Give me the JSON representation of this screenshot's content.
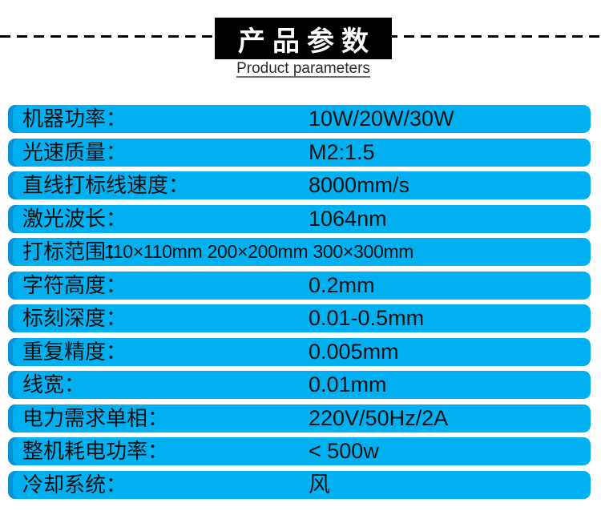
{
  "header": {
    "title": "产品参数",
    "subtitle": "Product parameters",
    "title_bg": "#000000",
    "title_color": "#ffffff"
  },
  "table": {
    "row_color": "#00b0f0",
    "accent_color": "#0c90d4",
    "text_color": "#111111",
    "rows": [
      {
        "label": "机器功率：",
        "value": "10W/20W/30W"
      },
      {
        "label": "光速质量：",
        "value": "M2:1.5"
      },
      {
        "label": "直线打标线速度：",
        "value": "8000mm/s"
      },
      {
        "label": "激光波长：",
        "value": "1064nm"
      },
      {
        "label": "打标范围：",
        "value": "110×110mm 200×200mm 300×300mm"
      },
      {
        "label": "字符高度：",
        "value": "0.2mm"
      },
      {
        "label": "标刻深度：",
        "value": "0.01-0.5mm"
      },
      {
        "label": "重复精度：",
        "value": "0.005mm"
      },
      {
        "label": "线宽：",
        "value": "0.01mm"
      },
      {
        "label": "电力需求单相：",
        "value": "220V/50Hz/2A"
      },
      {
        "label": "整机耗电功率：",
        "value": "< 500w"
      },
      {
        "label": "冷却系统：",
        "value": "风"
      }
    ]
  }
}
